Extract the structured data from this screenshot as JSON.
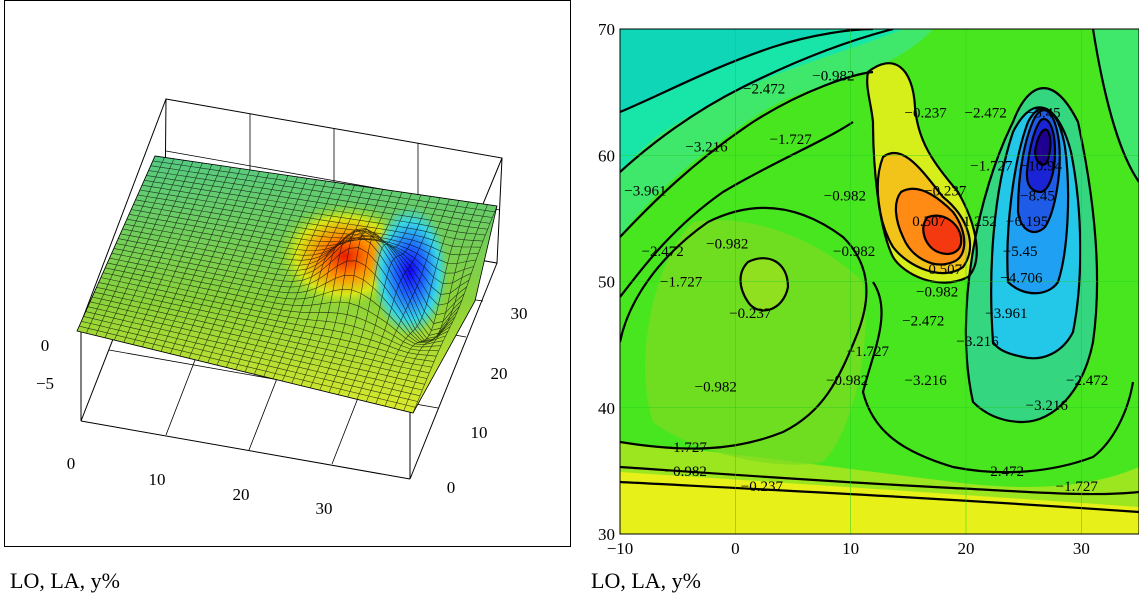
{
  "figure": {
    "captions": [
      "LO, LA, y%",
      "LO, LA, y%"
    ]
  },
  "surface_plot": {
    "x_tick_labels": [
      "0",
      "10",
      "20",
      "30"
    ],
    "y_tick_labels": [
      "0",
      "10",
      "20",
      "30"
    ],
    "z_tick_labels": [
      "0",
      "−5"
    ]
  },
  "chart_data": [
    {
      "type": "surface",
      "title": "",
      "x_ticks": [
        0,
        10,
        20,
        30
      ],
      "y_ticks": [
        0,
        10,
        20,
        30
      ],
      "z_ticks": [
        0,
        -5
      ],
      "colormap": "rainbow (blue low, red high)",
      "grid": true,
      "notes": "3D mesh surface of the same field shown in the contour plot: broad plateau with a red peak near the middle and a deep blue trough beside it."
    },
    {
      "type": "contour",
      "title": "",
      "xlim": [
        -10,
        35
      ],
      "ylim": [
        30,
        70
      ],
      "x_tick_labels": [
        "−10",
        "0",
        "10",
        "20",
        "30"
      ],
      "y_tick_labels": [
        "30",
        "40",
        "50",
        "60",
        "70"
      ],
      "x_ticks": [
        -10,
        0,
        10,
        20,
        30
      ],
      "y_ticks": [
        30,
        40,
        50,
        60,
        70
      ],
      "grid": true,
      "colormap": "rainbow (blue low, red high)",
      "features": [
        {
          "kind": "maximum",
          "x": 20,
          "y": 53
        },
        {
          "kind": "minimum",
          "x": 25.5,
          "y": 61
        }
      ],
      "contour_labels": [
        {
          "text": "−2.472",
          "x": 2.5,
          "y": 65.3
        },
        {
          "text": "−0.982",
          "x": 8.5,
          "y": 66.3
        },
        {
          "text": "−0.237",
          "x": 16.5,
          "y": 63.4
        },
        {
          "text": "−2.472",
          "x": 21.7,
          "y": 63.4
        },
        {
          "text": "−5.45",
          "x": 26.7,
          "y": 63.4
        },
        {
          "text": "−1.727",
          "x": 4.8,
          "y": 61.3
        },
        {
          "text": "−3.216",
          "x": -2.5,
          "y": 60.7
        },
        {
          "text": "−1.727",
          "x": 22.2,
          "y": 59.2
        },
        {
          "text": "−10.94",
          "x": 26.5,
          "y": 59.2
        },
        {
          "text": "−0.237",
          "x": 18.2,
          "y": 57.2
        },
        {
          "text": "−8.45",
          "x": 26.2,
          "y": 56.8
        },
        {
          "text": "−3.961",
          "x": -7.8,
          "y": 57.2
        },
        {
          "text": "−0.982",
          "x": 9.5,
          "y": 56.8
        },
        {
          "text": "0.507",
          "x": 16.8,
          "y": 54.8
        },
        {
          "text": "1.252",
          "x": 21.2,
          "y": 54.8
        },
        {
          "text": "−6.195",
          "x": 25.3,
          "y": 54.8
        },
        {
          "text": "−0.982",
          "x": -0.7,
          "y": 53.0
        },
        {
          "text": "−2.472",
          "x": -6.3,
          "y": 52.4
        },
        {
          "text": "−0.982",
          "x": 10.3,
          "y": 52.4
        },
        {
          "text": "0.507",
          "x": 18.2,
          "y": 51.0
        },
        {
          "text": "−5.45",
          "x": 24.7,
          "y": 52.4
        },
        {
          "text": "−1.727",
          "x": -4.7,
          "y": 50.0
        },
        {
          "text": "−0.982",
          "x": 17.5,
          "y": 49.2
        },
        {
          "text": "−4.706",
          "x": 24.8,
          "y": 50.3
        },
        {
          "text": "−0.237",
          "x": 1.3,
          "y": 47.5
        },
        {
          "text": "−2.472",
          "x": 16.3,
          "y": 46.9
        },
        {
          "text": "−3.961",
          "x": 23.5,
          "y": 47.5
        },
        {
          "text": "−3.216",
          "x": 21.0,
          "y": 45.3
        },
        {
          "text": "−1.727",
          "x": 11.5,
          "y": 44.5
        },
        {
          "text": "−0.982",
          "x": -1.7,
          "y": 41.7
        },
        {
          "text": "−0.982",
          "x": 9.7,
          "y": 42.2
        },
        {
          "text": "−3.216",
          "x": 16.5,
          "y": 42.2
        },
        {
          "text": "−2.472",
          "x": 30.5,
          "y": 42.2
        },
        {
          "text": "−3.216",
          "x": 27.0,
          "y": 40.2
        },
        {
          "text": "−1.727",
          "x": -4.3,
          "y": 36.9
        },
        {
          "text": "−0.982",
          "x": -4.3,
          "y": 35.0
        },
        {
          "text": "−2.472",
          "x": 23.2,
          "y": 35.0
        },
        {
          "text": "−0.237",
          "x": 2.3,
          "y": 33.8
        },
        {
          "text": "−1.727",
          "x": 29.6,
          "y": 33.8
        }
      ]
    }
  ]
}
